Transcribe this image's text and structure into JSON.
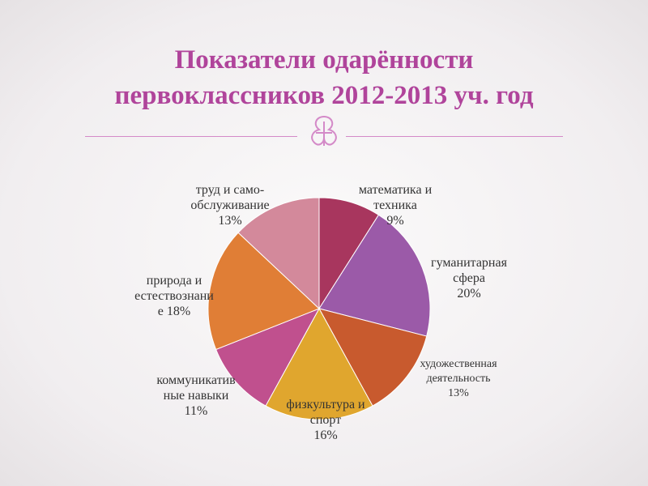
{
  "slide": {
    "title_line1": "Показатели одарённости",
    "title_line2": "первоклассников 2012-2013 уч. год",
    "ornament_icon": "decorative-knot-icon"
  },
  "chart_data": {
    "type": "pie",
    "title": "",
    "start_angle_deg": 0,
    "direction": "clockwise",
    "slices": [
      {
        "label_lines": [
          "математика и",
          "техника"
        ],
        "percent_label": "9%",
        "value": 9,
        "color": "#a8365e"
      },
      {
        "label_lines": [
          "гуманитарная",
          "сфера"
        ],
        "percent_label": "20%",
        "value": 20,
        "color": "#9b5aa8"
      },
      {
        "label_lines": [
          "художественная",
          "деятельность"
        ],
        "percent_label": "13%",
        "value": 13,
        "color": "#c85a2e"
      },
      {
        "label_lines": [
          "физкультура и",
          "спорт"
        ],
        "percent_label": "16%",
        "value": 16,
        "color": "#e0a62e"
      },
      {
        "label_lines": [
          "коммуникатив",
          "ные навыки"
        ],
        "percent_label": "11%",
        "value": 11,
        "color": "#c0508e"
      },
      {
        "label_lines": [
          "природа и",
          "естествознани",
          "е 18%"
        ],
        "percent_label": "",
        "value": 18,
        "color": "#e07e36"
      },
      {
        "label_lines": [
          "труд и само-",
          "обслуживание"
        ],
        "percent_label": "13%",
        "value": 13,
        "color": "#d3899b"
      }
    ]
  }
}
